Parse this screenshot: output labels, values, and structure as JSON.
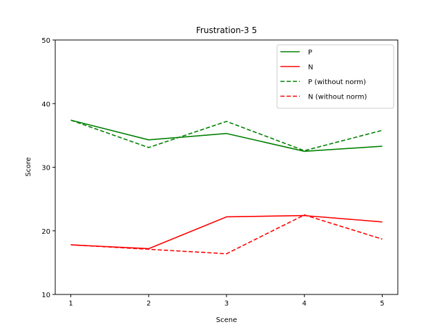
{
  "chart_data": {
    "type": "line",
    "title": "Frustration-3 5",
    "xlabel": "Scene",
    "ylabel": "Score",
    "x": [
      1,
      2,
      3,
      4,
      5
    ],
    "xticks": [
      "1",
      "2",
      "3",
      "4",
      "5"
    ],
    "ylim": [
      10,
      50
    ],
    "yticks": [
      10,
      20,
      30,
      40,
      50
    ],
    "grid": false,
    "legend_position": "top-right",
    "series": [
      {
        "name": "P",
        "color": "#008000",
        "style": "solid",
        "values": [
          37.4,
          34.3,
          35.3,
          32.5,
          33.3
        ]
      },
      {
        "name": "N",
        "color": "#ff0000",
        "style": "solid",
        "values": [
          17.8,
          17.2,
          22.2,
          22.4,
          21.4
        ]
      },
      {
        "name": "P (without norm)",
        "color": "#008000",
        "style": "dashed",
        "values": [
          37.4,
          33.1,
          37.2,
          32.6,
          35.8
        ]
      },
      {
        "name": "N (without norm)",
        "color": "#ff0000",
        "style": "dashed",
        "values": [
          17.8,
          17.1,
          16.4,
          22.5,
          18.7
        ]
      }
    ]
  }
}
